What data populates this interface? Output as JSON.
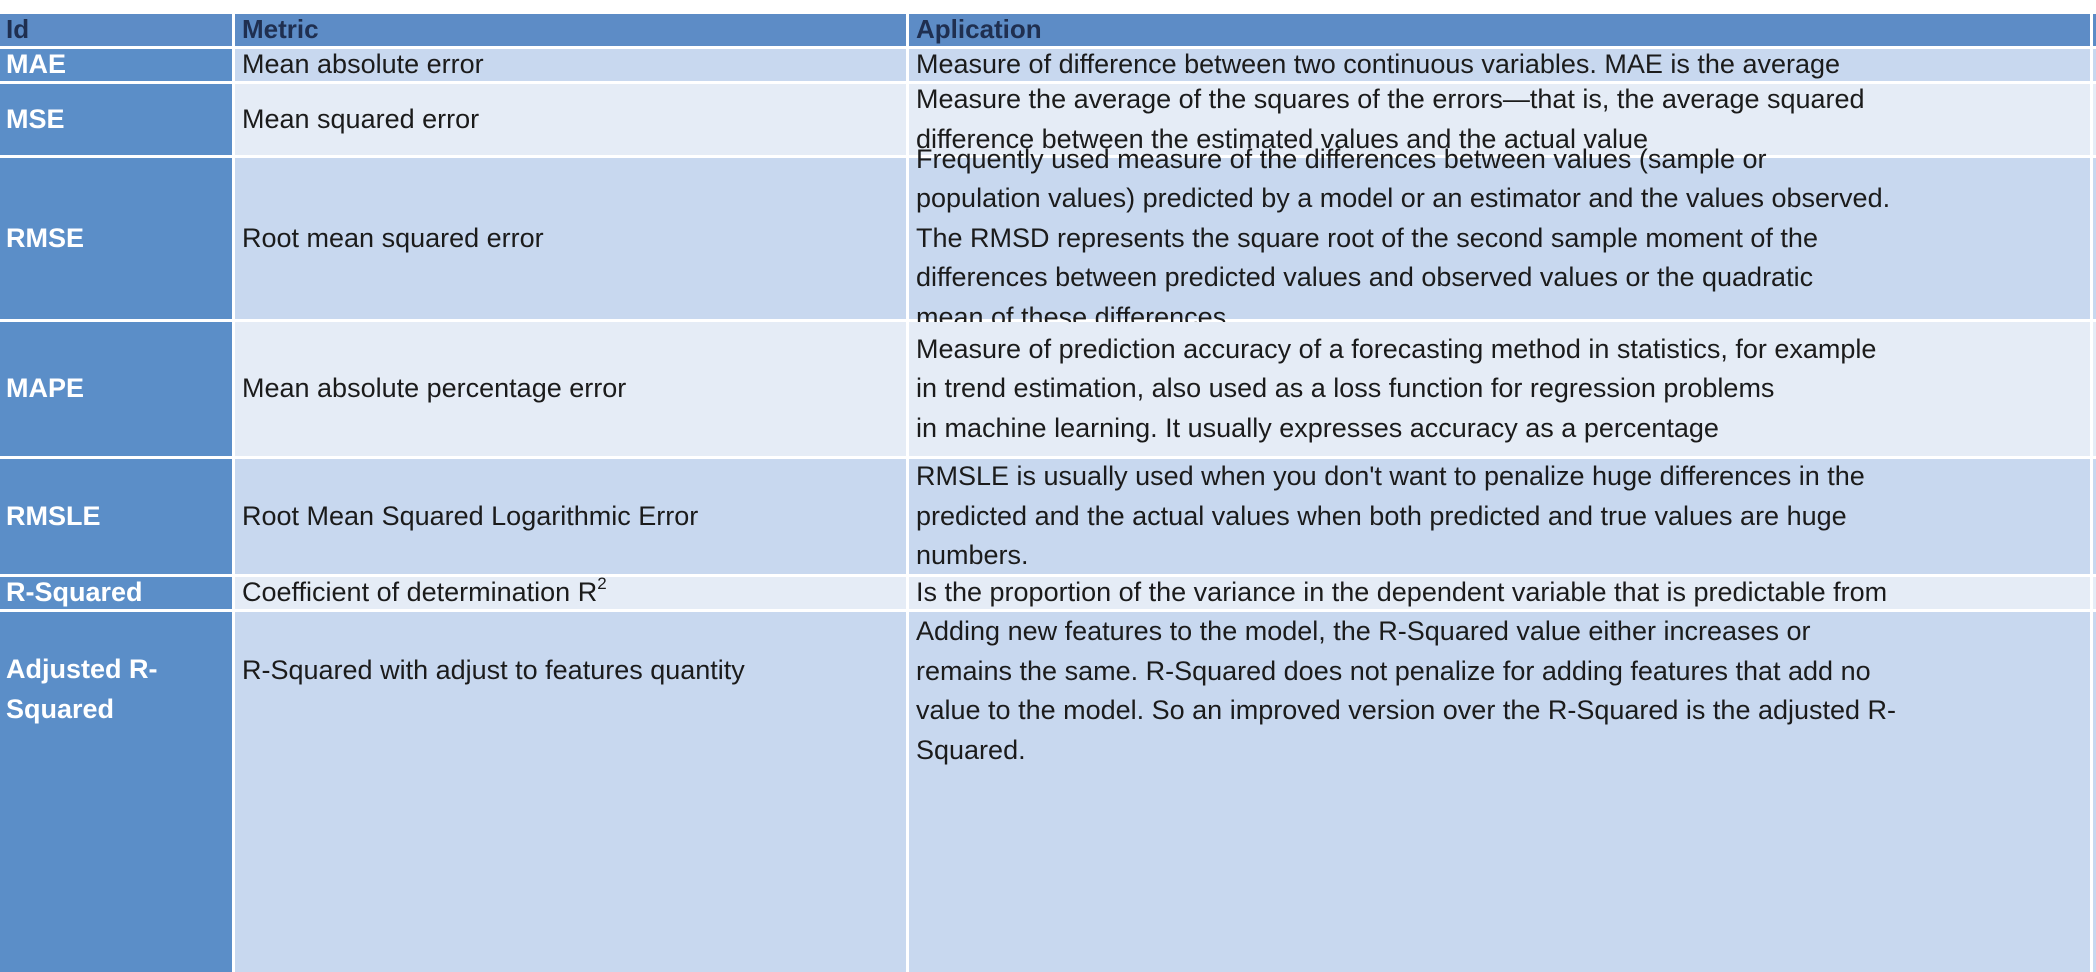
{
  "header": {
    "id": "Id",
    "metric": "Metric",
    "application": "Aplication"
  },
  "rows": [
    {
      "id": "MAE",
      "metric": "Mean absolute error",
      "application": "Measure of difference between two continuous variables. MAE is the average"
    },
    {
      "id": "MSE",
      "metric": "Mean squared error",
      "application": "Measure the average of the squares of the errors—that is, the average squared\ndifference between the estimated values and the actual value"
    },
    {
      "id": "RMSE",
      "metric": "Root mean squared error",
      "application": "Frequently used measure of the differences between values (sample or\npopulation values) predicted by a model or an estimator and the values observed.\nThe RMSD represents the square root of the second sample moment of the\ndifferences between predicted values and observed values or the quadratic\nmean of these differences"
    },
    {
      "id": "MAPE",
      "metric": "Mean absolute percentage error",
      "application": "Measure of prediction accuracy of a forecasting method in statistics, for example\nin trend estimation, also used as a loss function for regression problems\nin machine learning. It usually expresses accuracy as a percentage"
    },
    {
      "id": "RMSLE",
      "metric": "Root Mean Squared Logarithmic Error",
      "application": "RMSLE is usually used when you don't want to penalize huge differences in the\npredicted and the actual values when both predicted and true values are huge\nnumbers."
    },
    {
      "id": "R-Squared",
      "metric": "Coefficient of determination R",
      "metric_sup": "2",
      "application": "Is the proportion of the variance in the dependent variable that is predictable from"
    },
    {
      "id": "Adjusted R-\nSquared",
      "metric": "R-Squared with adjust to features quantity",
      "application": "Adding new features to the model, the R-Squared value either increases or\nremains the same. R-Squared does not penalize for adding features that add no\nvalue to the model. So an improved version over the R-Squared is the adjusted R-\nSquared."
    }
  ]
}
